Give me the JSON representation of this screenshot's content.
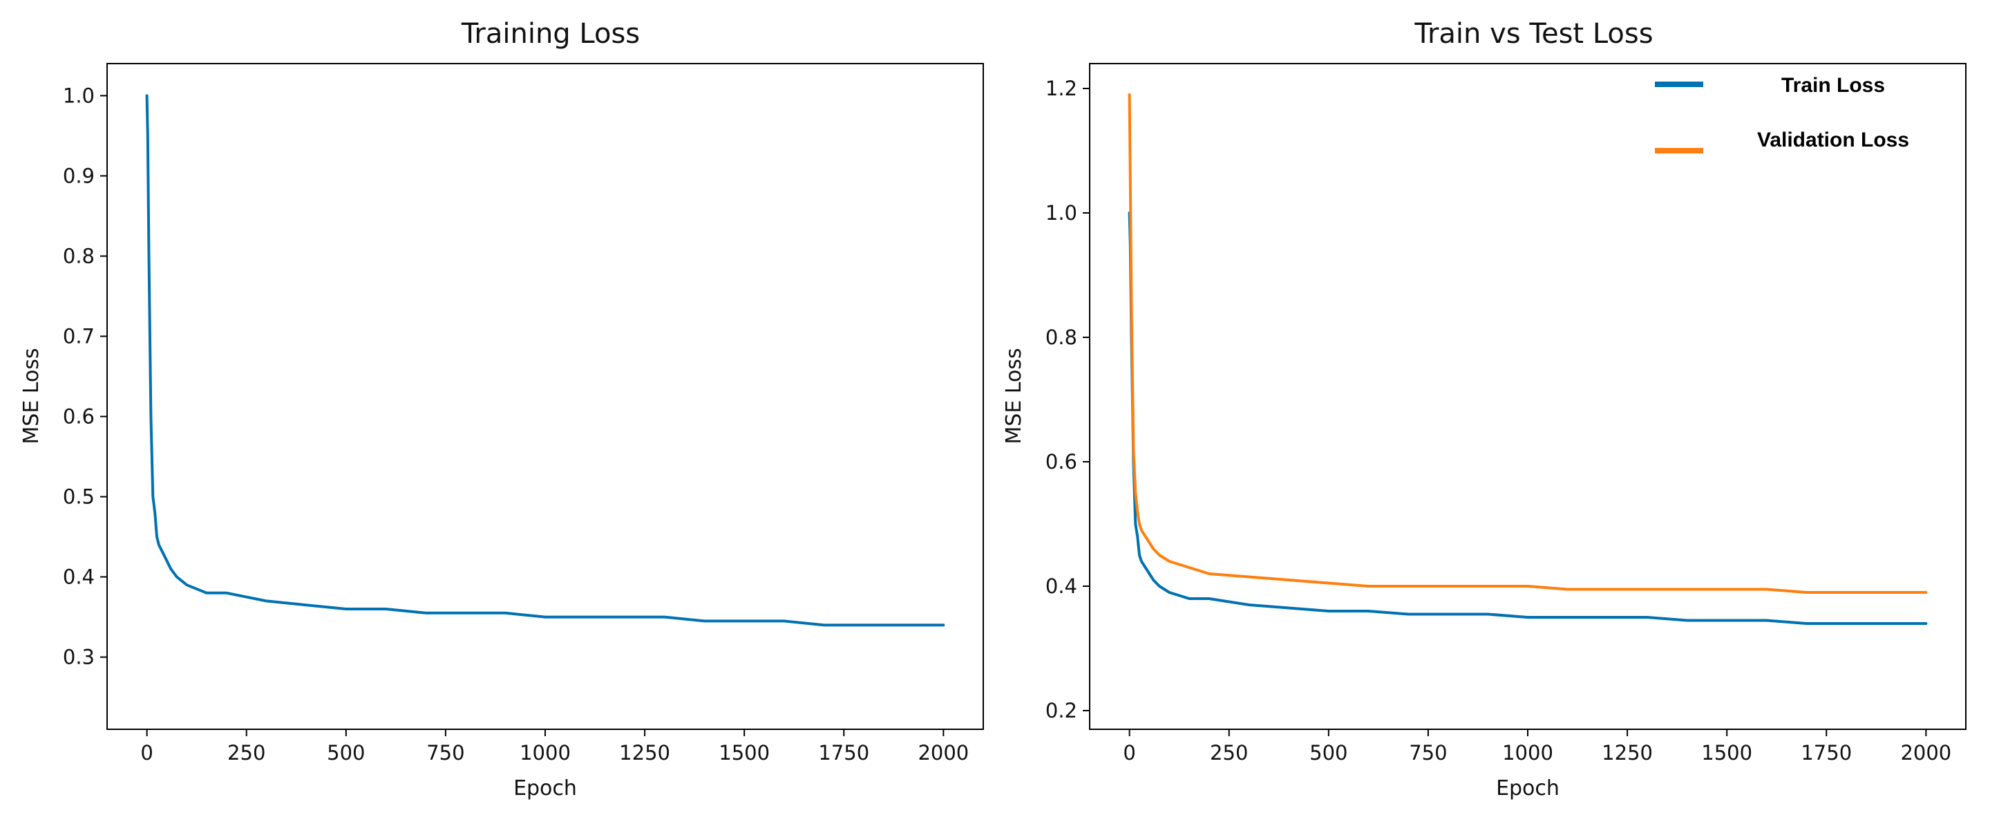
{
  "chart_data": [
    {
      "type": "line",
      "title": "Training Loss",
      "xlabel": "Epoch",
      "ylabel": "MSE Loss",
      "xlim": [
        -100,
        2100
      ],
      "ylim": [
        0.21,
        1.04
      ],
      "xticks": [
        0,
        250,
        500,
        750,
        1000,
        1250,
        1500,
        1750,
        2000
      ],
      "yticks": [
        0.3,
        0.4,
        0.5,
        0.6,
        0.7,
        0.8,
        0.9,
        1.0
      ],
      "ytick_labels": [
        "0.3",
        "0.4",
        "0.5",
        "0.6",
        "0.7",
        "0.8",
        "0.9",
        "1.0"
      ],
      "grid": false,
      "legend": null,
      "series": [
        {
          "color": "#0072b2",
          "x": [
            0,
            2,
            5,
            10,
            15,
            20,
            25,
            30,
            40,
            50,
            60,
            75,
            100,
            150,
            200,
            300,
            400,
            500,
            600,
            700,
            800,
            900,
            1000,
            1100,
            1200,
            1300,
            1400,
            1500,
            1600,
            1700,
            1800,
            1900,
            2000
          ],
          "values": [
            1.0,
            0.95,
            0.8,
            0.6,
            0.5,
            0.48,
            0.45,
            0.44,
            0.43,
            0.42,
            0.41,
            0.4,
            0.39,
            0.38,
            0.38,
            0.37,
            0.365,
            0.36,
            0.36,
            0.355,
            0.355,
            0.355,
            0.35,
            0.35,
            0.35,
            0.35,
            0.345,
            0.345,
            0.345,
            0.34,
            0.34,
            0.34,
            0.34
          ]
        }
      ]
    },
    {
      "type": "line",
      "title": "Train vs Test Loss",
      "xlabel": "Epoch",
      "ylabel": "MSE Loss",
      "xlim": [
        -100,
        2100
      ],
      "ylim": [
        0.17,
        1.24
      ],
      "xticks": [
        0,
        250,
        500,
        750,
        1000,
        1250,
        1500,
        1750,
        2000
      ],
      "yticks": [
        0.2,
        0.4,
        0.6,
        0.8,
        1.0,
        1.2
      ],
      "ytick_labels": [
        "0.2",
        "0.4",
        "0.6",
        "0.8",
        "1.0",
        "1.2"
      ],
      "grid": false,
      "legend": "top-right",
      "series": [
        {
          "name": "Train Loss",
          "color": "#0072b2",
          "x": [
            0,
            2,
            5,
            10,
            15,
            20,
            25,
            30,
            40,
            50,
            60,
            75,
            100,
            150,
            200,
            300,
            400,
            500,
            600,
            700,
            800,
            900,
            1000,
            1100,
            1200,
            1300,
            1400,
            1500,
            1600,
            1700,
            1800,
            1900,
            2000
          ],
          "values": [
            1.0,
            0.95,
            0.8,
            0.6,
            0.5,
            0.48,
            0.45,
            0.44,
            0.43,
            0.42,
            0.41,
            0.4,
            0.39,
            0.38,
            0.38,
            0.37,
            0.365,
            0.36,
            0.36,
            0.355,
            0.355,
            0.355,
            0.35,
            0.35,
            0.35,
            0.35,
            0.345,
            0.345,
            0.345,
            0.34,
            0.34,
            0.34,
            0.34
          ]
        },
        {
          "name": "Validation Loss",
          "color": "#ff7f0e",
          "x": [
            0,
            2,
            5,
            10,
            15,
            20,
            25,
            30,
            40,
            50,
            60,
            75,
            100,
            150,
            200,
            300,
            400,
            500,
            600,
            700,
            800,
            900,
            1000,
            1100,
            1200,
            1300,
            1400,
            1500,
            1600,
            1700,
            1800,
            1900,
            2000
          ],
          "values": [
            1.19,
            1.05,
            0.85,
            0.62,
            0.55,
            0.52,
            0.5,
            0.49,
            0.48,
            0.47,
            0.46,
            0.45,
            0.44,
            0.43,
            0.42,
            0.415,
            0.41,
            0.405,
            0.4,
            0.4,
            0.4,
            0.4,
            0.4,
            0.395,
            0.395,
            0.395,
            0.395,
            0.395,
            0.395,
            0.39,
            0.39,
            0.39,
            0.39
          ]
        }
      ]
    }
  ]
}
